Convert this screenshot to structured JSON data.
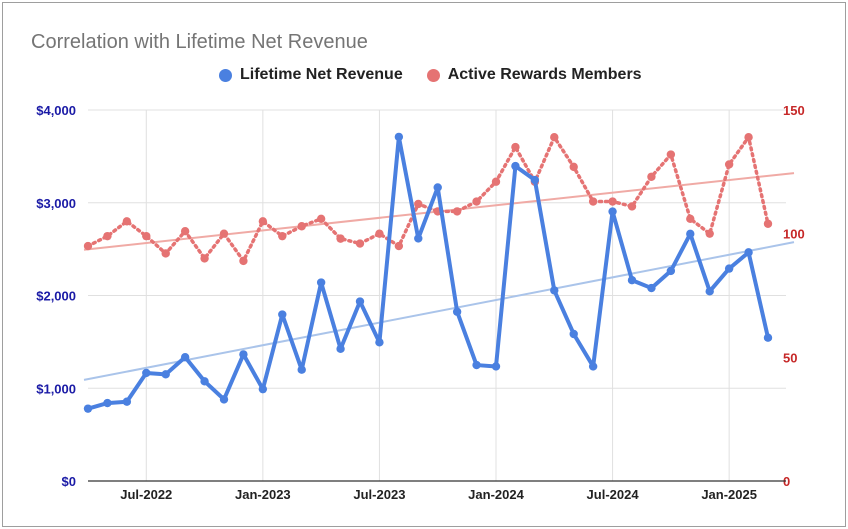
{
  "chart_data": {
    "type": "line",
    "title": "Correlation with Lifetime Net Revenue",
    "xlabel": "",
    "ylabel": "",
    "x_tick_labels": [
      "Jul-2022",
      "Jan-2023",
      "Jul-2023",
      "Jan-2024",
      "Jul-2024",
      "Jan-2025"
    ],
    "y_left_tick_labels": [
      "$0",
      "$1,000",
      "$2,000",
      "$3,000",
      "$4,000"
    ],
    "y_right_tick_labels": [
      "0",
      "50",
      "100",
      "150"
    ],
    "ylim_left": [
      0,
      4000
    ],
    "ylim_right": [
      0,
      150
    ],
    "grid": true,
    "legend_position": "top",
    "series": [
      {
        "name": "Lifetime Net Revenue",
        "axis": "left",
        "color": "#4a80e0",
        "style": "solid",
        "values": [
          780,
          840,
          855,
          1165,
          1150,
          1335,
          1075,
          880,
          1365,
          990,
          1795,
          1200,
          2140,
          1425,
          1935,
          1495,
          3710,
          2615,
          3165,
          1825,
          1250,
          1235,
          3395,
          3245,
          2055,
          1585,
          1235,
          2905,
          2165,
          2080,
          2265,
          2665,
          2045,
          2290,
          2465,
          1545
        ]
      },
      {
        "name": "Active Rewards Members",
        "axis": "right",
        "color": "#e57373",
        "style": "dotted",
        "values": [
          95,
          99,
          105,
          99,
          92,
          101,
          90,
          100,
          89,
          105,
          99,
          103,
          106,
          98,
          96,
          100,
          95,
          112,
          109,
          109,
          113,
          121,
          135,
          121,
          139,
          127,
          113,
          113,
          111,
          123,
          132,
          106,
          100,
          128,
          139,
          104
        ]
      }
    ],
    "trendlines": [
      {
        "series": "Lifetime Net Revenue",
        "color": "#aac4ea",
        "start": 1090,
        "end": 2575
      },
      {
        "series": "Active Rewards Members",
        "color": "#f0aaa5",
        "start": 93.5,
        "end": 124.5
      }
    ]
  }
}
